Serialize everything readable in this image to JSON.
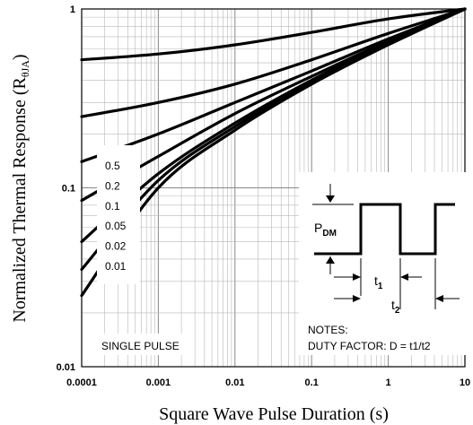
{
  "chart_data": {
    "type": "line",
    "xlabel": "Square Wave Pulse Duration (s)",
    "ylabel": "Normalized Thermal Response (R",
    "ylabel_sub": "θJA",
    "ylabel_close": ")",
    "x_scale": "log",
    "y_scale": "log",
    "xlim": [
      0.0001,
      10
    ],
    "ylim": [
      0.01,
      1
    ],
    "x_ticks": [
      "0.0001",
      "0.001",
      "0.01",
      "0.1",
      "1",
      "10"
    ],
    "y_ticks": [
      "0.01",
      "0.1",
      "1"
    ],
    "grid": true,
    "series": [
      {
        "name": "0.5",
        "x": [
          0.0001,
          0.001,
          0.01,
          0.1,
          1,
          10
        ],
        "y": [
          0.52,
          0.56,
          0.63,
          0.74,
          0.88,
          1.0
        ]
      },
      {
        "name": "0.2",
        "x": [
          0.0001,
          0.001,
          0.01,
          0.1,
          1,
          10
        ],
        "y": [
          0.25,
          0.3,
          0.38,
          0.52,
          0.73,
          1.0
        ]
      },
      {
        "name": "0.1",
        "x": [
          0.0001,
          0.001,
          0.01,
          0.1,
          1,
          10
        ],
        "y": [
          0.14,
          0.2,
          0.3,
          0.45,
          0.68,
          1.0
        ]
      },
      {
        "name": "0.05",
        "x": [
          0.0001,
          0.001,
          0.01,
          0.1,
          1,
          10
        ],
        "y": [
          0.085,
          0.15,
          0.26,
          0.42,
          0.66,
          1.0
        ]
      },
      {
        "name": "0.02",
        "x": [
          0.0001,
          0.001,
          0.01,
          0.1,
          1,
          10
        ],
        "y": [
          0.05,
          0.12,
          0.23,
          0.4,
          0.65,
          1.0
        ]
      },
      {
        "name": "0.01",
        "x": [
          0.0001,
          0.001,
          0.01,
          0.1,
          1,
          10
        ],
        "y": [
          0.035,
          0.11,
          0.22,
          0.39,
          0.64,
          1.0
        ]
      },
      {
        "name": "SINGLE PULSE",
        "x": [
          0.0001,
          0.001,
          0.01,
          0.1,
          1,
          10
        ],
        "y": [
          0.025,
          0.1,
          0.21,
          0.38,
          0.63,
          1.0
        ]
      }
    ],
    "legend_labels": [
      "0.5",
      "0.2",
      "0.1",
      "0.05",
      "0.02",
      "0.01"
    ],
    "annotations": {
      "single_pulse": "SINGLE PULSE",
      "pdm": "P",
      "pdm_sub": "DM",
      "t1": "t",
      "t1_sub": "1",
      "t2": "t",
      "t2_sub": "2",
      "notes": "NOTES:",
      "duty_factor": "DUTY FACTOR: D = t1/t2"
    }
  }
}
